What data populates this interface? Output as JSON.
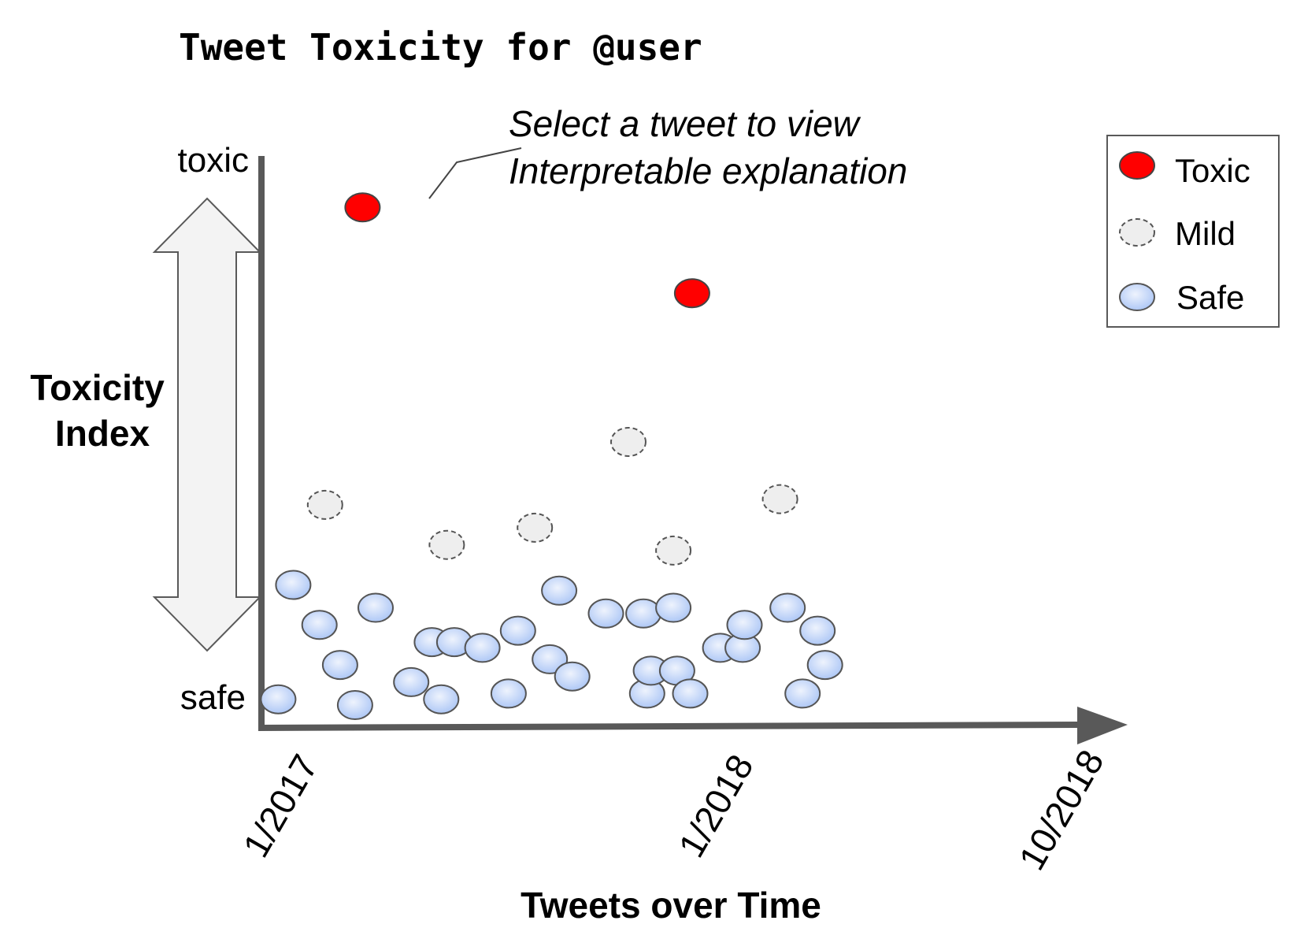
{
  "chart_data": {
    "type": "scatter",
    "title": "Tweet Toxicity for @user",
    "xlabel": "Tweets over Time",
    "ylabel": "Toxicity Index",
    "y_top_label": "toxic",
    "y_bottom_label": "safe",
    "x_ticks": [
      "1/2017",
      "1/2018",
      "10/2018"
    ],
    "annotation": [
      "Select a tweet to view",
      "Interpretable explanation"
    ],
    "legend": {
      "placement": "top-right",
      "entries": [
        {
          "key": "toxic",
          "label": "Toxic"
        },
        {
          "key": "mild",
          "label": "Mild"
        },
        {
          "key": "safe",
          "label": "Safe"
        }
      ]
    },
    "colors": {
      "toxic": "#ff0000",
      "mild": "#eeeeee",
      "safe": "#a9c4f5",
      "axis": "#595959",
      "arrow_fill": "#f3f3f3"
    },
    "grid": false,
    "xlim": [
      0,
      22.5
    ],
    "ylim": [
      0,
      1
    ],
    "points": [
      {
        "x": 0.45,
        "y": 0.05,
        "cls": "safe"
      },
      {
        "x": 0.85,
        "y": 0.25,
        "cls": "safe"
      },
      {
        "x": 1.55,
        "y": 0.18,
        "cls": "safe"
      },
      {
        "x": 1.7,
        "y": 0.39,
        "cls": "mild"
      },
      {
        "x": 2.1,
        "y": 0.11,
        "cls": "safe"
      },
      {
        "x": 2.5,
        "y": 0.04,
        "cls": "safe"
      },
      {
        "x": 2.7,
        "y": 0.91,
        "cls": "toxic"
      },
      {
        "x": 3.05,
        "y": 0.21,
        "cls": "safe"
      },
      {
        "x": 4.0,
        "y": 0.08,
        "cls": "safe"
      },
      {
        "x": 4.55,
        "y": 0.15,
        "cls": "safe"
      },
      {
        "x": 4.8,
        "y": 0.05,
        "cls": "safe"
      },
      {
        "x": 4.95,
        "y": 0.32,
        "cls": "mild"
      },
      {
        "x": 5.15,
        "y": 0.15,
        "cls": "safe"
      },
      {
        "x": 5.9,
        "y": 0.14,
        "cls": "safe"
      },
      {
        "x": 6.6,
        "y": 0.06,
        "cls": "safe"
      },
      {
        "x": 6.85,
        "y": 0.17,
        "cls": "safe"
      },
      {
        "x": 7.3,
        "y": 0.35,
        "cls": "mild"
      },
      {
        "x": 7.7,
        "y": 0.12,
        "cls": "safe"
      },
      {
        "x": 7.95,
        "y": 0.24,
        "cls": "safe"
      },
      {
        "x": 8.3,
        "y": 0.09,
        "cls": "safe"
      },
      {
        "x": 9.2,
        "y": 0.2,
        "cls": "safe"
      },
      {
        "x": 9.8,
        "y": 0.5,
        "cls": "mild"
      },
      {
        "x": 10.2,
        "y": 0.2,
        "cls": "safe"
      },
      {
        "x": 10.3,
        "y": 0.06,
        "cls": "safe"
      },
      {
        "x": 10.4,
        "y": 0.1,
        "cls": "safe"
      },
      {
        "x": 11.0,
        "y": 0.31,
        "cls": "mild"
      },
      {
        "x": 11.0,
        "y": 0.21,
        "cls": "safe"
      },
      {
        "x": 11.1,
        "y": 0.1,
        "cls": "safe"
      },
      {
        "x": 11.45,
        "y": 0.06,
        "cls": "safe"
      },
      {
        "x": 11.5,
        "y": 0.76,
        "cls": "toxic"
      },
      {
        "x": 12.25,
        "y": 0.14,
        "cls": "safe"
      },
      {
        "x": 12.85,
        "y": 0.14,
        "cls": "safe"
      },
      {
        "x": 12.9,
        "y": 0.18,
        "cls": "safe"
      },
      {
        "x": 13.85,
        "y": 0.4,
        "cls": "mild"
      },
      {
        "x": 14.05,
        "y": 0.21,
        "cls": "safe"
      },
      {
        "x": 14.45,
        "y": 0.06,
        "cls": "safe"
      },
      {
        "x": 14.85,
        "y": 0.17,
        "cls": "safe"
      },
      {
        "x": 15.05,
        "y": 0.11,
        "cls": "safe"
      }
    ]
  }
}
